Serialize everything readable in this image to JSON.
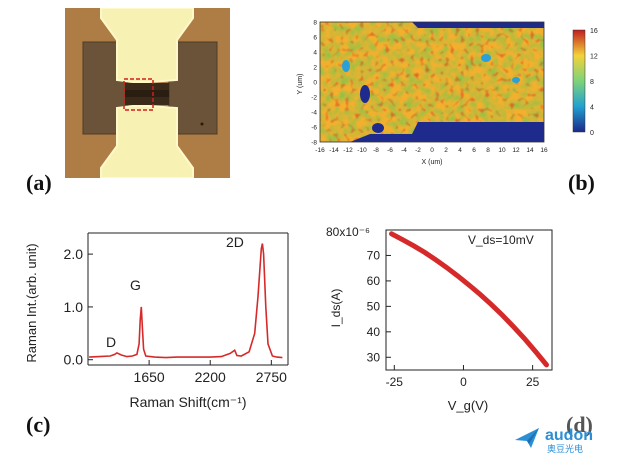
{
  "panels": {
    "a": "(a)",
    "b": "(b)",
    "c": "(c)",
    "d": "(d)"
  },
  "heatmap": {
    "ylabel": "Y (um)",
    "xlabel": "X (um)",
    "yticks": [
      "8",
      "6",
      "4",
      "2",
      "0",
      "-2",
      "-4",
      "-6",
      "-8"
    ],
    "xticks": [
      "-16",
      "-14",
      "-12",
      "-10",
      "-8",
      "-6",
      "-4",
      "-2",
      "0",
      "2",
      "4",
      "6",
      "8",
      "10",
      "12",
      "14",
      "16"
    ],
    "colorbar_ticks": [
      "16",
      "12",
      "8",
      "4",
      "0"
    ]
  },
  "chart_data": [
    {
      "type": "line",
      "title": "",
      "xlabel": "Raman Shift(cm⁻¹)",
      "ylabel": "Raman Int.(arb. unit)",
      "xlim": [
        1100,
        2900
      ],
      "ylim": [
        -0.1,
        2.4
      ],
      "x_ticks": [
        "1650",
        "2200",
        "2750"
      ],
      "y_ticks": [
        "0.0",
        "1.0",
        "2.0"
      ],
      "annotations": [
        "D",
        "G",
        "2D"
      ],
      "series": [
        {
          "name": "Raman spectrum",
          "x": [
            1110,
            1200,
            1300,
            1340,
            1360,
            1400,
            1450,
            1500,
            1540,
            1560,
            1570,
            1580,
            1590,
            1600,
            1620,
            1700,
            1800,
            1900,
            2000,
            2100,
            2200,
            2300,
            2380,
            2420,
            2440,
            2480,
            2550,
            2600,
            2630,
            2660,
            2670,
            2680,
            2700,
            2720,
            2760,
            2800,
            2850
          ],
          "values": [
            0.05,
            0.06,
            0.07,
            0.1,
            0.13,
            0.09,
            0.06,
            0.07,
            0.1,
            0.3,
            0.75,
            1.0,
            0.6,
            0.2,
            0.07,
            0.05,
            0.04,
            0.05,
            0.05,
            0.05,
            0.05,
            0.06,
            0.12,
            0.18,
            0.08,
            0.07,
            0.15,
            0.5,
            1.2,
            2.1,
            2.2,
            2.0,
            1.0,
            0.3,
            0.07,
            0.05,
            0.04
          ]
        }
      ]
    },
    {
      "type": "line",
      "title": "",
      "annotation": "V_ds=10mV",
      "xlabel": "V_g(V)",
      "ylabel": "I_ds(A)",
      "y_scale_label": "80x10⁻⁶",
      "xlim": [
        -28,
        32
      ],
      "ylim": [
        25,
        80
      ],
      "x_ticks": [
        "-25",
        "0",
        "25"
      ],
      "y_ticks": [
        "70",
        "60",
        "50",
        "40",
        "30"
      ],
      "series": [
        {
          "name": "Ids",
          "x": [
            -26,
            -22,
            -18,
            -14,
            -10,
            -6,
            -2,
            2,
            6,
            10,
            14,
            18,
            22,
            26,
            30
          ],
          "values": [
            78.5,
            76.2,
            73.8,
            71.2,
            68.3,
            65.2,
            61.9,
            58.4,
            54.7,
            50.8,
            46.6,
            42.1,
            37.4,
            32.3,
            27.0
          ]
        }
      ]
    }
  ],
  "logo": {
    "text": "audon",
    "subtext": "奥豆光电"
  }
}
